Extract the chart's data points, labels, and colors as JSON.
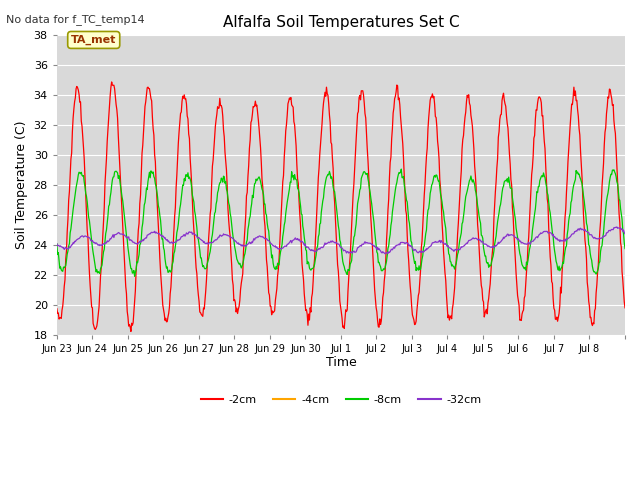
{
  "title": "Alfalfa Soil Temperatures Set C",
  "subtitle": "No data for f_TC_temp14",
  "ylabel": "Soil Temperature (C)",
  "xlabel": "Time",
  "ylim": [
    18,
    38
  ],
  "xtick_positions": [
    0,
    1,
    2,
    3,
    4,
    5,
    6,
    7,
    8,
    9,
    10,
    11,
    12,
    13,
    14,
    15,
    16
  ],
  "xtick_labels": [
    "Jun 23",
    "Jun 24",
    "Jun 25",
    "Jun 26",
    "Jun 27",
    "Jun 28",
    "Jun 29",
    "Jun 30",
    "Jul 1",
    "Jul 2",
    "Jul 3",
    "Jul 4",
    "Jul 5",
    "Jul 6",
    "Jul 7",
    "Jul 8",
    ""
  ],
  "ytick_labels": [
    "18",
    "20",
    "22",
    "24",
    "26",
    "28",
    "30",
    "32",
    "34",
    "36",
    "38"
  ],
  "legend_entries": [
    "-2cm",
    "-4cm",
    "-8cm",
    "-32cm"
  ],
  "legend_colors": [
    "#ff0000",
    "#ffa500",
    "#00cc00",
    "#8833cc"
  ],
  "annotation_text": "TA_met",
  "annotation_bg": "#ffffcc",
  "annotation_border": "#999900",
  "annotation_text_color": "#993300",
  "plot_bg": "#d9d9d9",
  "grid_color": "#ffffff",
  "subtitle_color": "#333333"
}
